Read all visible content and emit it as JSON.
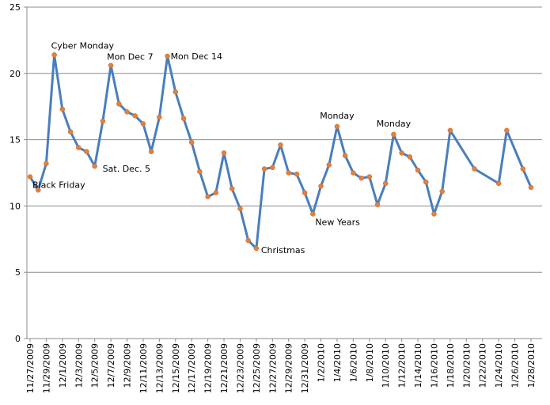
{
  "chart_data": {
    "type": "line",
    "title": "",
    "xlabel": "",
    "ylabel": "",
    "ylim": [
      0,
      25
    ],
    "yticks": [
      0,
      5,
      10,
      15,
      20,
      25
    ],
    "grid": "horizontal",
    "legend": "none",
    "colors": {
      "line": "#4a7ebb",
      "marker": "#e3803e",
      "grid": "#8c8c8c"
    },
    "x_ticks": [
      "11/27/2009",
      "11/29/2009",
      "12/1/2009",
      "12/3/2009",
      "12/5/2009",
      "12/7/2009",
      "12/9/2009",
      "12/11/2009",
      "12/13/2009",
      "12/15/2009",
      "12/17/2009",
      "12/19/2009",
      "12/21/2009",
      "12/23/2009",
      "12/25/2009",
      "12/27/2009",
      "12/29/2009",
      "12/31/2009",
      "1/2/2010",
      "1/4/2010",
      "1/6/2010",
      "1/8/2010",
      "1/10/2010",
      "1/12/2010",
      "1/14/2010",
      "1/16/2010",
      "1/18/2010",
      "1/20/2010",
      "1/22/2010",
      "1/24/2010",
      "1/26/2010",
      "1/28/2010"
    ],
    "x": [
      "11/27/2009",
      "11/28/2009",
      "11/29/2009",
      "11/30/2009",
      "12/1/2009",
      "12/2/2009",
      "12/3/2009",
      "12/4/2009",
      "12/5/2009",
      "12/6/2009",
      "12/7/2009",
      "12/8/2009",
      "12/9/2009",
      "12/10/2009",
      "12/11/2009",
      "12/12/2009",
      "12/13/2009",
      "12/14/2009",
      "12/15/2009",
      "12/16/2009",
      "12/17/2009",
      "12/18/2009",
      "12/19/2009",
      "12/20/2009",
      "12/21/2009",
      "12/22/2009",
      "12/23/2009",
      "12/24/2009",
      "12/25/2009",
      "12/26/2009",
      "12/27/2009",
      "12/28/2009",
      "12/29/2009",
      "12/30/2009",
      "12/31/2009",
      "1/1/2010",
      "1/2/2010",
      "1/3/2010",
      "1/4/2010",
      "1/5/2010",
      "1/6/2010",
      "1/7/2010",
      "1/8/2010",
      "1/9/2010",
      "1/10/2010",
      "1/11/2010",
      "1/12/2010",
      "1/13/2010",
      "1/14/2010",
      "1/15/2010",
      "1/16/2010",
      "1/17/2010",
      "1/18/2010",
      "1/21/2010",
      "1/24/2010",
      "1/25/2010",
      "1/27/2010",
      "1/28/2010"
    ],
    "y": [
      12.2,
      11.2,
      13.2,
      21.4,
      17.3,
      15.6,
      14.4,
      14.1,
      13.0,
      16.4,
      20.6,
      17.7,
      17.1,
      16.8,
      16.2,
      14.1,
      16.7,
      21.3,
      18.6,
      16.6,
      14.8,
      12.6,
      10.7,
      11.0,
      14.0,
      11.3,
      9.8,
      7.4,
      6.8,
      12.8,
      12.9,
      14.6,
      12.5,
      12.4,
      11.0,
      9.4,
      11.5,
      13.1,
      16.0,
      13.8,
      12.5,
      12.1,
      12.2,
      10.1,
      11.7,
      15.4,
      14.0,
      13.7,
      12.7,
      11.8,
      9.4,
      11.1,
      15.7,
      12.8,
      11.7,
      15.7,
      12.8,
      11.4
    ],
    "annotations": [
      {
        "text": "Black Friday",
        "x": "11/27/2009",
        "y": 12.2
      },
      {
        "text": "Cyber Monday",
        "x": "11/30/2009",
        "y": 21.4
      },
      {
        "text": "Sat. Dec. 5",
        "x": "12/5/2009",
        "y": 13.0
      },
      {
        "text": "Mon Dec 7",
        "x": "12/7/2009",
        "y": 20.6
      },
      {
        "text": "Mon Dec 14",
        "x": "12/14/2009",
        "y": 21.3
      },
      {
        "text": "Christmas",
        "x": "12/25/2009",
        "y": 6.8
      },
      {
        "text": "New Years",
        "x": "1/1/2010",
        "y": 9.4
      },
      {
        "text": "Monday",
        "x": "1/4/2010",
        "y": 16.0
      },
      {
        "text": "Monday",
        "x": "1/11/2010",
        "y": 15.4
      }
    ]
  }
}
